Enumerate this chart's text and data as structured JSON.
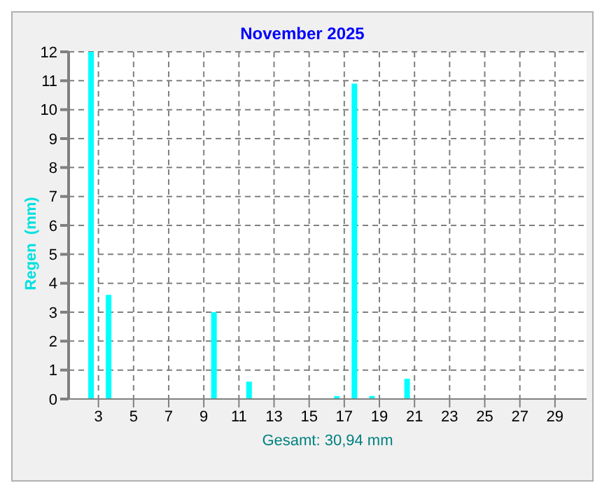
{
  "chart_data": {
    "type": "bar",
    "title": "November 2025",
    "xlabel": "Gesamt: 30,94 mm",
    "ylabel": "Regen  (mm)",
    "x": [
      2.6,
      3.6,
      9.6,
      11.6,
      16.6,
      17.6,
      18.6,
      20.6
    ],
    "values": [
      12,
      3.6,
      3.0,
      0.6,
      0.1,
      10.9,
      0.1,
      0.7
    ],
    "color": "#00ffff",
    "xlim": [
      1.3,
      30.8
    ],
    "xticks": [
      3,
      5,
      7,
      9,
      11,
      13,
      15,
      17,
      19,
      21,
      23,
      25,
      27,
      29
    ],
    "ylim": [
      0,
      12
    ],
    "yticks": [
      0,
      1,
      2,
      3,
      4,
      5,
      6,
      7,
      8,
      9,
      10,
      11,
      12
    ],
    "grid": true
  }
}
